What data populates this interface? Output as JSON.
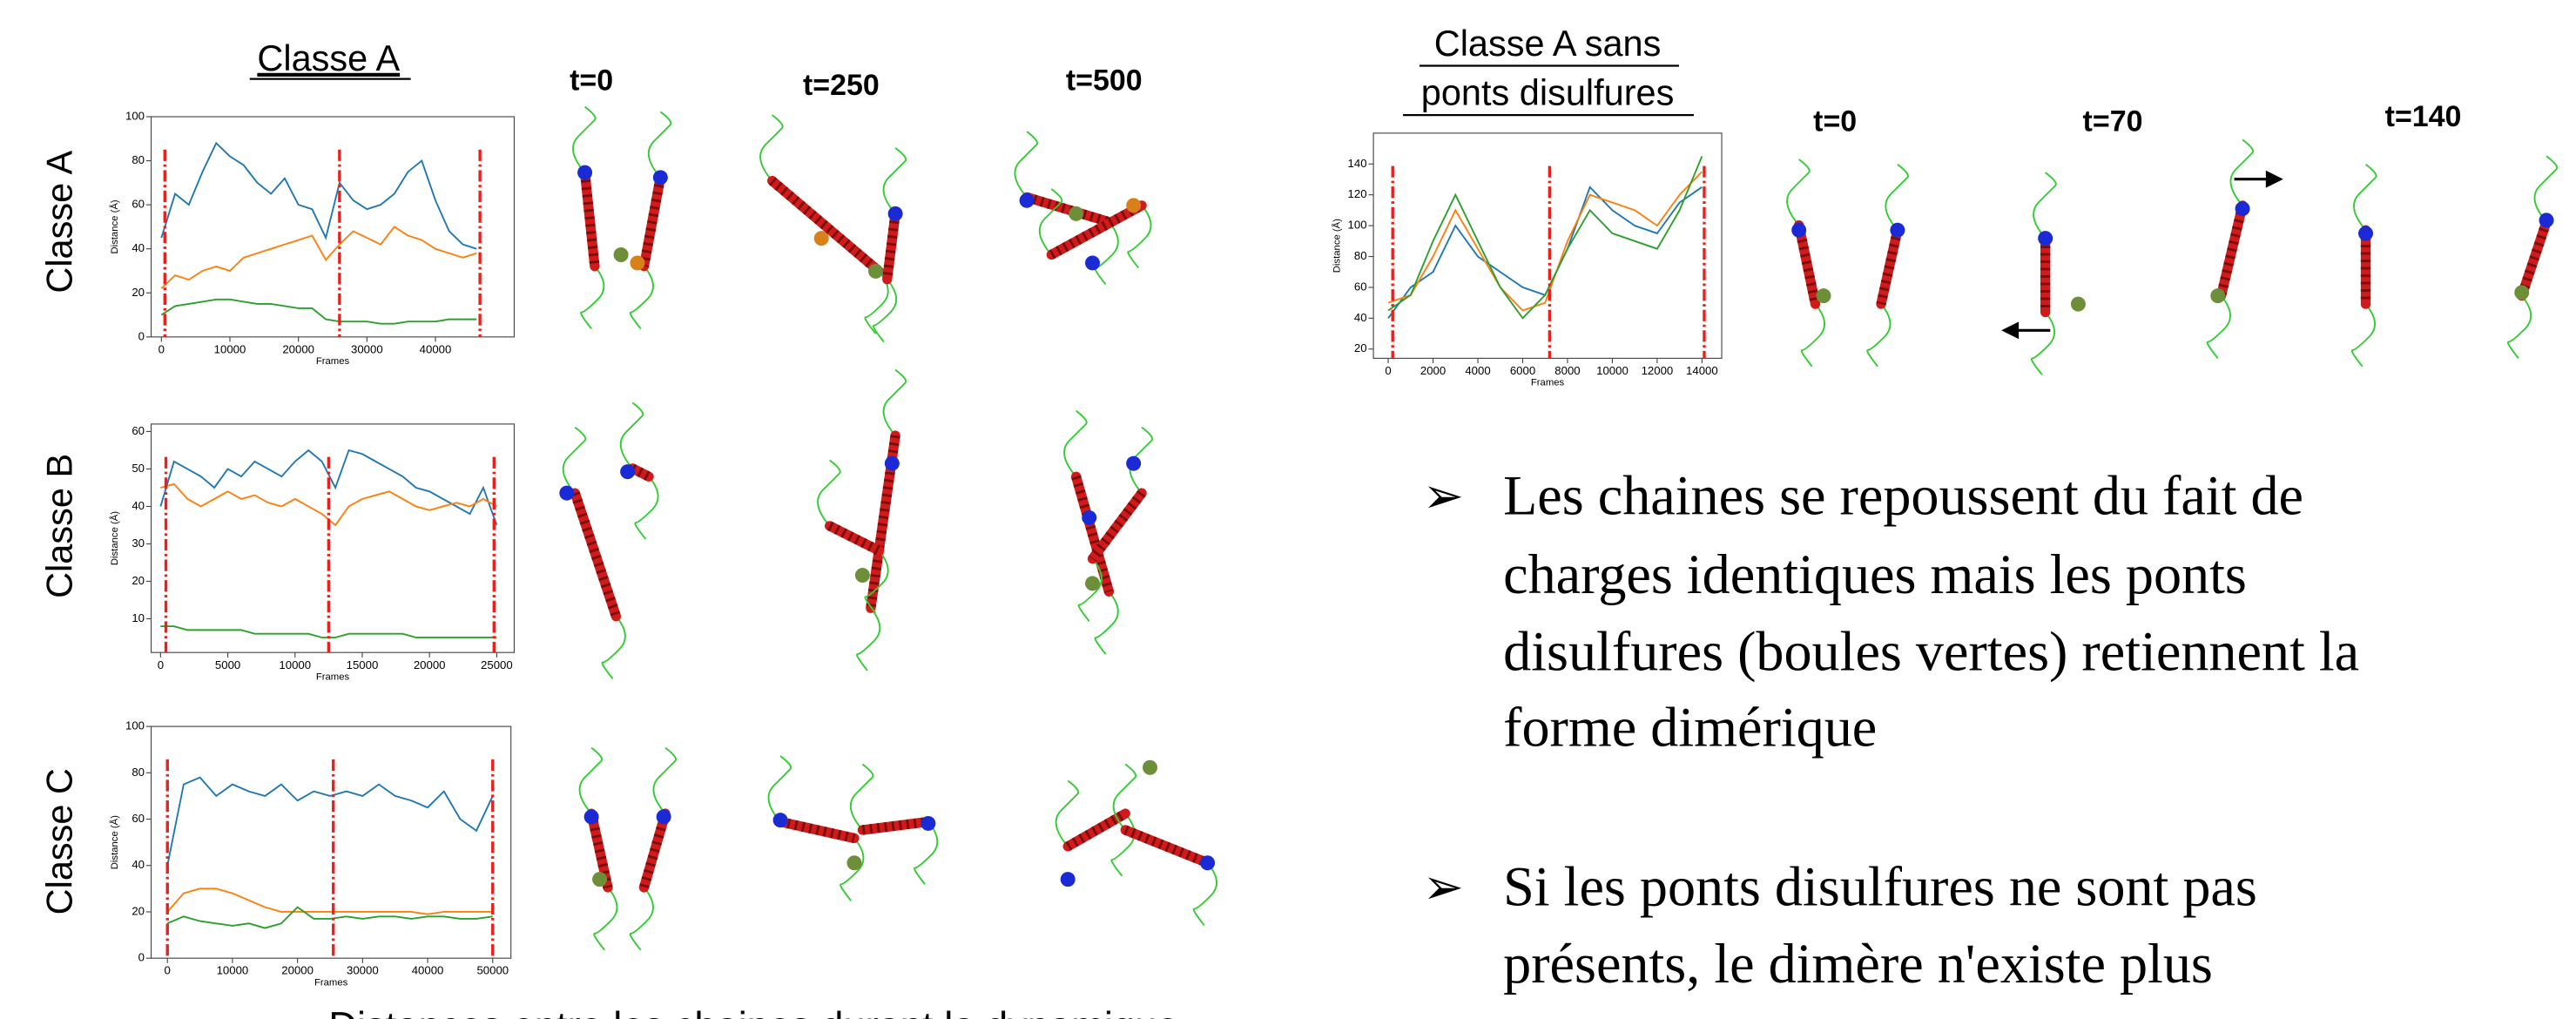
{
  "left_heading": "Classe A",
  "row_labels": [
    "Classe A",
    "Classe B",
    "Classe C"
  ],
  "left_times": [
    "t=0",
    "t=250",
    "t=500"
  ],
  "right_heading": [
    "Classe A sans",
    "ponts disulfures"
  ],
  "right_times": [
    "t=0",
    "t=70",
    "t=140"
  ],
  "bullets": [
    [
      "Les chaines se repoussent du fait de",
      "charges identiques mais les ponts",
      "disulfures (boules vertes) retiennent la",
      "forme dimérique"
    ],
    [
      "Si les ponts disulfures ne sont pas",
      "présents, le dimère n'existe plus"
    ]
  ],
  "caption": "Distances entre les chaines durant la dynamique",
  "chart_data": [
    {
      "type": "line",
      "xlabel": "Frames",
      "ylabel": "Distance (Å)",
      "x": [
        0,
        2000,
        4000,
        6000,
        8000,
        10000,
        12000,
        14000,
        16000,
        18000,
        20000,
        22000,
        24000,
        26000,
        28000,
        30000,
        32000,
        34000,
        36000,
        38000,
        40000,
        42000,
        44000,
        46000
      ],
      "series": [
        {
          "color": "#1f77b4",
          "values": [
            45,
            65,
            60,
            75,
            88,
            82,
            78,
            70,
            65,
            72,
            60,
            58,
            45,
            70,
            62,
            58,
            60,
            65,
            75,
            80,
            62,
            48,
            42,
            40
          ]
        },
        {
          "color": "#ff7f0e",
          "values": [
            22,
            28,
            26,
            30,
            32,
            30,
            36,
            38,
            40,
            42,
            44,
            46,
            35,
            42,
            48,
            45,
            42,
            50,
            46,
            44,
            40,
            38,
            36,
            38
          ]
        },
        {
          "color": "#2ca02c",
          "values": [
            10,
            14,
            15,
            16,
            17,
            17,
            16,
            15,
            15,
            14,
            13,
            13,
            8,
            7,
            7,
            7,
            6,
            6,
            7,
            7,
            7,
            8,
            8,
            8
          ]
        }
      ],
      "vlines": [
        500,
        26000,
        46500
      ],
      "vline_color": "#e8211c",
      "xlim": [
        -1500,
        51500
      ],
      "ylim": [
        0,
        100
      ],
      "xticks": [
        0,
        10000,
        20000,
        30000,
        40000
      ],
      "yticks": [
        0,
        20,
        40,
        60,
        80,
        100
      ]
    },
    {
      "type": "line",
      "xlabel": "Frames",
      "ylabel": "Distance (Å)",
      "x": [
        0,
        1000,
        2000,
        3000,
        4000,
        5000,
        6000,
        7000,
        8000,
        9000,
        10000,
        11000,
        12000,
        13000,
        14000,
        15000,
        16000,
        17000,
        18000,
        19000,
        20000,
        21000,
        22000,
        23000,
        24000,
        25000
      ],
      "series": [
        {
          "color": "#1f77b4",
          "values": [
            40,
            52,
            50,
            48,
            45,
            50,
            48,
            52,
            50,
            48,
            52,
            55,
            52,
            45,
            55,
            54,
            52,
            50,
            48,
            45,
            44,
            42,
            40,
            38,
            45,
            35
          ]
        },
        {
          "color": "#ff7f0e",
          "values": [
            45,
            46,
            42,
            40,
            42,
            44,
            42,
            43,
            41,
            40,
            42,
            40,
            38,
            35,
            40,
            42,
            43,
            44,
            42,
            40,
            39,
            40,
            41,
            40,
            42,
            40
          ]
        },
        {
          "color": "#2ca02c",
          "values": [
            8,
            8,
            7,
            7,
            7,
            7,
            7,
            6,
            6,
            6,
            6,
            6,
            5,
            5,
            6,
            6,
            6,
            6,
            6,
            5,
            5,
            5,
            5,
            5,
            5,
            5
          ]
        }
      ],
      "vlines": [
        400,
        12500,
        24800
      ],
      "vline_color": "#e8211c",
      "xlim": [
        -700,
        26300
      ],
      "ylim": [
        1,
        62
      ],
      "xticks": [
        0,
        5000,
        10000,
        15000,
        20000,
        25000
      ],
      "yticks": [
        10,
        20,
        30,
        40,
        50,
        60
      ]
    },
    {
      "type": "line",
      "xlabel": "Frames",
      "ylabel": "Distance (Å)",
      "x": [
        0,
        2500,
        5000,
        7500,
        10000,
        12500,
        15000,
        17500,
        20000,
        22500,
        25000,
        27500,
        30000,
        32500,
        35000,
        37500,
        40000,
        42500,
        45000,
        47500,
        50000
      ],
      "series": [
        {
          "color": "#1f77b4",
          "values": [
            40,
            75,
            78,
            70,
            75,
            72,
            70,
            75,
            68,
            72,
            70,
            72,
            70,
            75,
            70,
            68,
            65,
            72,
            60,
            55,
            70
          ]
        },
        {
          "color": "#ff7f0e",
          "values": [
            20,
            28,
            30,
            30,
            28,
            25,
            22,
            20,
            20,
            20,
            20,
            20,
            20,
            20,
            20,
            20,
            19,
            20,
            20,
            20,
            20
          ]
        },
        {
          "color": "#2ca02c",
          "values": [
            15,
            18,
            16,
            15,
            14,
            15,
            13,
            15,
            22,
            17,
            17,
            18,
            17,
            18,
            18,
            17,
            18,
            18,
            17,
            17,
            18
          ]
        }
      ],
      "vlines": [
        0,
        25500,
        50000
      ],
      "vline_color": "#e8211c",
      "xlim": [
        -2500,
        52800
      ],
      "ylim": [
        0,
        100
      ],
      "xticks": [
        0,
        10000,
        20000,
        30000,
        40000,
        50000
      ],
      "yticks": [
        0,
        20,
        40,
        60,
        80,
        100
      ]
    },
    {
      "type": "line",
      "xlabel": "Frames",
      "ylabel": "Distance (Å)",
      "x": [
        0,
        1000,
        2000,
        3000,
        4000,
        5000,
        6000,
        7000,
        8000,
        9000,
        10000,
        11000,
        12000,
        13000,
        14000
      ],
      "series": [
        {
          "color": "#1f77b4",
          "values": [
            40,
            60,
            70,
            100,
            80,
            70,
            60,
            55,
            85,
            125,
            110,
            100,
            95,
            115,
            125
          ]
        },
        {
          "color": "#ff7f0e",
          "values": [
            50,
            55,
            80,
            110,
            85,
            60,
            45,
            50,
            90,
            120,
            115,
            110,
            100,
            120,
            135
          ]
        },
        {
          "color": "#2ca02c",
          "values": [
            45,
            55,
            90,
            120,
            90,
            60,
            40,
            55,
            85,
            110,
            95,
            90,
            85,
            110,
            145
          ]
        }
      ],
      "vlines": [
        200,
        7200,
        14100
      ],
      "vline_color": "#e8211c",
      "xlim": [
        -660,
        14880
      ],
      "ylim": [
        14,
        160
      ],
      "xticks": [
        0,
        2000,
        4000,
        6000,
        8000,
        10000,
        12000,
        14000
      ],
      "yticks": [
        20,
        40,
        60,
        80,
        100,
        120,
        140
      ]
    }
  ]
}
